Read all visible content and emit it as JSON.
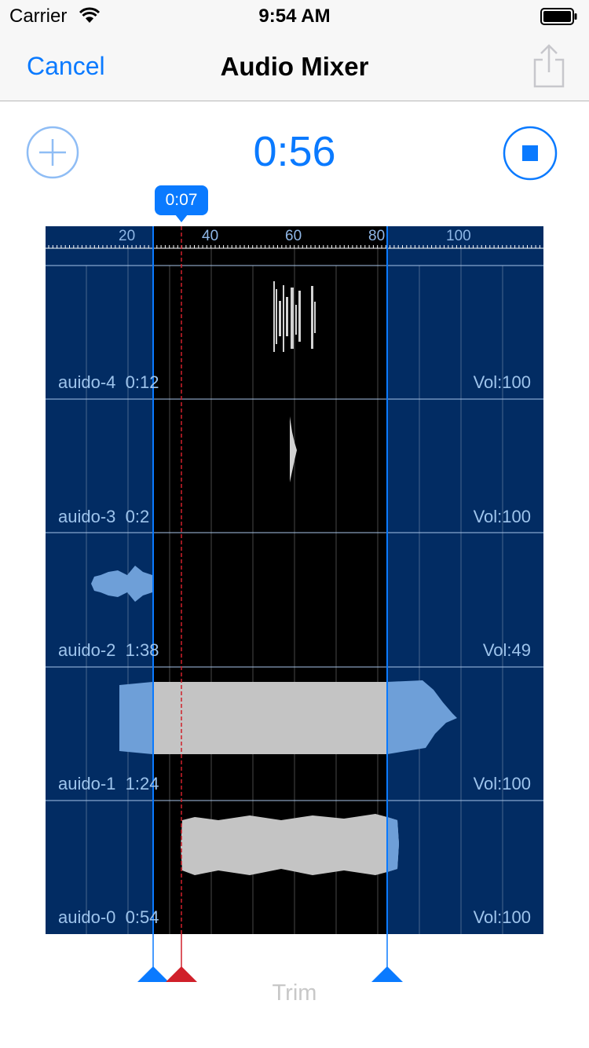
{
  "status_bar": {
    "carrier": "Carrier",
    "time": "9:54 AM"
  },
  "nav": {
    "cancel_label": "Cancel",
    "title": "Audio Mixer"
  },
  "player": {
    "elapsed": "0:56",
    "marker_time": "0:07"
  },
  "ruler": {
    "labels": [
      "20",
      "40",
      "60",
      "80",
      "100"
    ]
  },
  "tracks": [
    {
      "name": "auido-4",
      "duration": "0:12",
      "volume": "Vol:100"
    },
    {
      "name": "auido-3",
      "duration": "0:2",
      "volume": "Vol:100"
    },
    {
      "name": "auido-2",
      "duration": "1:38",
      "volume": "Vol:49"
    },
    {
      "name": "auido-1",
      "duration": "1:24",
      "volume": "Vol:100"
    },
    {
      "name": "auido-0",
      "duration": "0:54",
      "volume": "Vol:100"
    }
  ],
  "footer": {
    "trim_label": "Trim"
  },
  "colors": {
    "accent": "#0a7aff",
    "timeline_bg": "#022c63",
    "selection_bg": "#000000",
    "playhead": "#d0202a",
    "waveform_selected": "#c0c0c0",
    "waveform_unselected": "#6e9fd8"
  },
  "icons": {
    "add": "plus-circle-icon",
    "stop": "stop-circle-icon",
    "share": "share-icon"
  }
}
